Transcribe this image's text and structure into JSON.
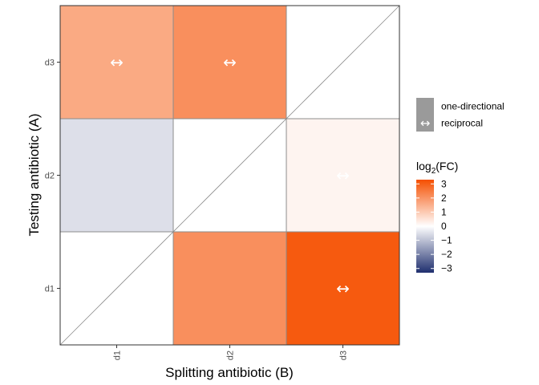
{
  "chart_data": {
    "type": "heatmap",
    "x_categories": [
      "d1",
      "d2",
      "d3"
    ],
    "y_categories": [
      "d1",
      "d2",
      "d3"
    ],
    "xlabel": "Splitting antibiotic (B)",
    "ylabel": "Testing antibiotic (A)",
    "cells": [
      {
        "x": "d1",
        "y": "d2",
        "value": -0.5,
        "type": "one-directional"
      },
      {
        "x": "d1",
        "y": "d3",
        "value": 1.6,
        "type": "reciprocal"
      },
      {
        "x": "d2",
        "y": "d1",
        "value": 2.1,
        "type": "one-directional"
      },
      {
        "x": "d2",
        "y": "d3",
        "value": 2.1,
        "type": "reciprocal"
      },
      {
        "x": "d3",
        "y": "d1",
        "value": 3.1,
        "type": "reciprocal"
      },
      {
        "x": "d3",
        "y": "d2",
        "value": 0.2,
        "type": "reciprocal"
      }
    ],
    "legend_type": {
      "items": [
        {
          "label": "one-directional",
          "symbol": ""
        },
        {
          "label": "reciprocal",
          "symbol": "↔"
        }
      ]
    },
    "legend_color": {
      "title_base": "log",
      "title_sub": "2",
      "title_rest": "(FC)",
      "ticks": [
        3,
        2,
        1,
        0,
        -1,
        -2,
        -3
      ],
      "tick_labels": [
        "3",
        "2",
        "1",
        "0",
        "−1",
        "−2",
        "−3"
      ],
      "range": [
        -3.3,
        3.3
      ],
      "colors": {
        "low": "#1f2f6e",
        "mid": "#ffffff",
        "high": "#f54f00"
      }
    },
    "grid": false,
    "legend_position": "right"
  }
}
